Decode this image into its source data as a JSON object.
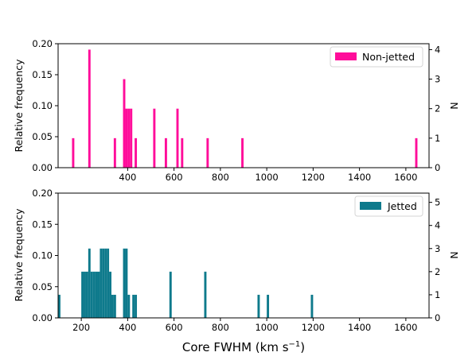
{
  "chart_data": [
    {
      "type": "bar",
      "panel": "top",
      "legend": "Non-jetted",
      "legend_placement": "top-right",
      "color": "#ff0d9a",
      "bin_width": 10,
      "xlim": [
        100,
        1700
      ],
      "ylabel_left": "Relative frequency",
      "ylabel_right": "N",
      "ylim_left": [
        0,
        0.2
      ],
      "ylim_right": [
        0,
        4.2
      ],
      "yticks_left": [
        "0.00",
        "0.05",
        "0.10",
        "0.15",
        "0.20"
      ],
      "yticks_right": [
        "0",
        "1",
        "2",
        "3",
        "4"
      ],
      "xticks": [
        "400",
        "600",
        "800",
        "1000",
        "1200",
        "1400",
        "1600"
      ],
      "bins": [
        {
          "x": 160,
          "n": 1
        },
        {
          "x": 230,
          "n": 4
        },
        {
          "x": 340,
          "n": 1
        },
        {
          "x": 380,
          "n": 3
        },
        {
          "x": 390,
          "n": 2
        },
        {
          "x": 400,
          "n": 2
        },
        {
          "x": 410,
          "n": 2
        },
        {
          "x": 430,
          "n": 1
        },
        {
          "x": 510,
          "n": 2
        },
        {
          "x": 560,
          "n": 1
        },
        {
          "x": 610,
          "n": 2
        },
        {
          "x": 630,
          "n": 1
        },
        {
          "x": 740,
          "n": 1
        },
        {
          "x": 890,
          "n": 1
        },
        {
          "x": 1640,
          "n": 1
        }
      ]
    },
    {
      "type": "bar",
      "panel": "bottom",
      "legend": "Jetted",
      "legend_placement": "top-right",
      "color": "#0e7a8c",
      "bin_width": 10,
      "xlim": [
        100,
        1700
      ],
      "xlabel": "Core FWHM (km s",
      "xlabel_sup": "−1",
      "xlabel_close": ")",
      "ylabel_left": "Relative frequency",
      "ylabel_right": "N",
      "ylim_left": [
        0,
        0.2
      ],
      "ylim_right": [
        0,
        5.4
      ],
      "yticks_left": [
        "0.00",
        "0.05",
        "0.10",
        "0.15",
        "0.20"
      ],
      "yticks_right": [
        "0",
        "1",
        "2",
        "3",
        "4",
        "5"
      ],
      "xticks": [
        "200",
        "400",
        "600",
        "800",
        "1000",
        "1200",
        "1400",
        "1600"
      ],
      "bins": [
        {
          "x": 100,
          "n": 1
        },
        {
          "x": 200,
          "n": 2
        },
        {
          "x": 210,
          "n": 2
        },
        {
          "x": 220,
          "n": 2
        },
        {
          "x": 230,
          "n": 3
        },
        {
          "x": 240,
          "n": 2
        },
        {
          "x": 250,
          "n": 2
        },
        {
          "x": 260,
          "n": 2
        },
        {
          "x": 270,
          "n": 2
        },
        {
          "x": 280,
          "n": 3
        },
        {
          "x": 290,
          "n": 3
        },
        {
          "x": 300,
          "n": 3
        },
        {
          "x": 310,
          "n": 3
        },
        {
          "x": 320,
          "n": 2
        },
        {
          "x": 330,
          "n": 1
        },
        {
          "x": 340,
          "n": 1
        },
        {
          "x": 380,
          "n": 3
        },
        {
          "x": 390,
          "n": 3
        },
        {
          "x": 400,
          "n": 1
        },
        {
          "x": 420,
          "n": 1
        },
        {
          "x": 430,
          "n": 1
        },
        {
          "x": 580,
          "n": 2
        },
        {
          "x": 730,
          "n": 2
        },
        {
          "x": 960,
          "n": 1
        },
        {
          "x": 1000,
          "n": 1
        },
        {
          "x": 1190,
          "n": 1
        }
      ]
    }
  ]
}
